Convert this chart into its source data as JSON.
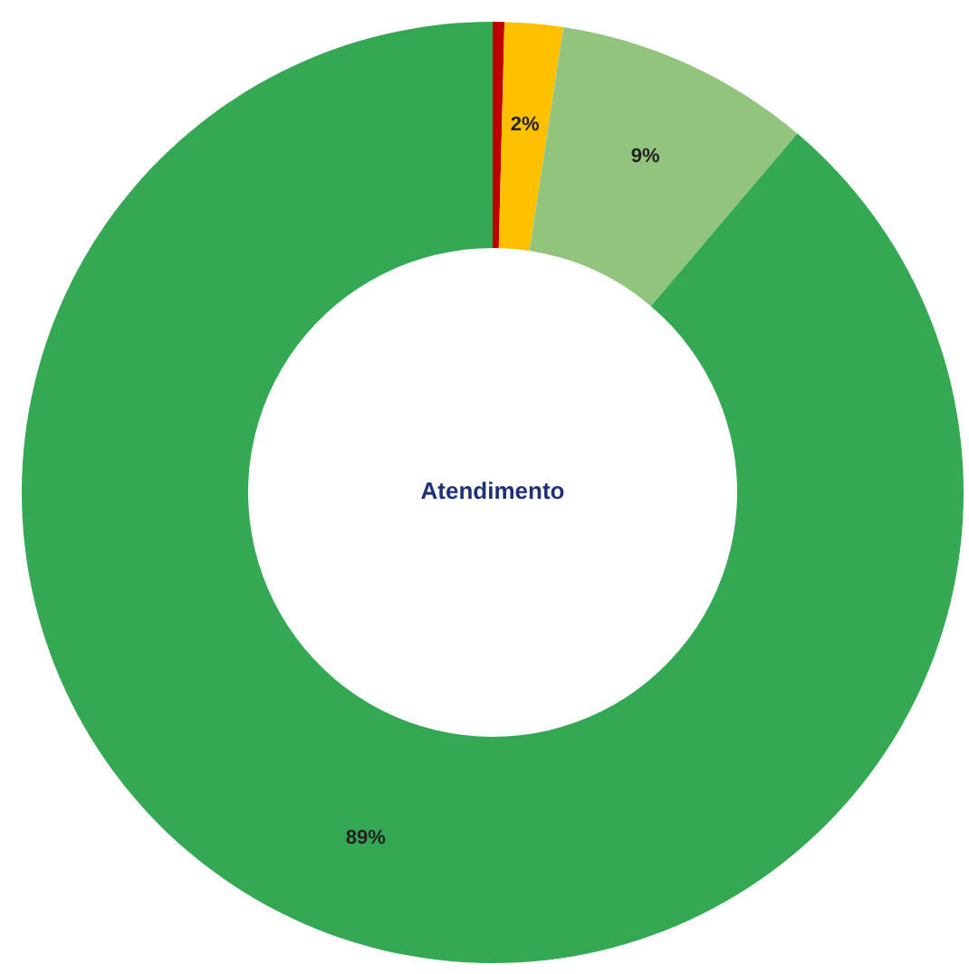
{
  "chart_data": {
    "type": "donut",
    "title": "Atendimento",
    "categories": [
      null,
      null,
      null,
      null
    ],
    "values": [
      0.4,
      2,
      8.8,
      88.8
    ],
    "colors": [
      "#c00000",
      "#ffc000",
      "#93c47d",
      "#34a853"
    ],
    "value_labels": [
      null,
      "2%",
      "9%",
      "89%"
    ]
  }
}
